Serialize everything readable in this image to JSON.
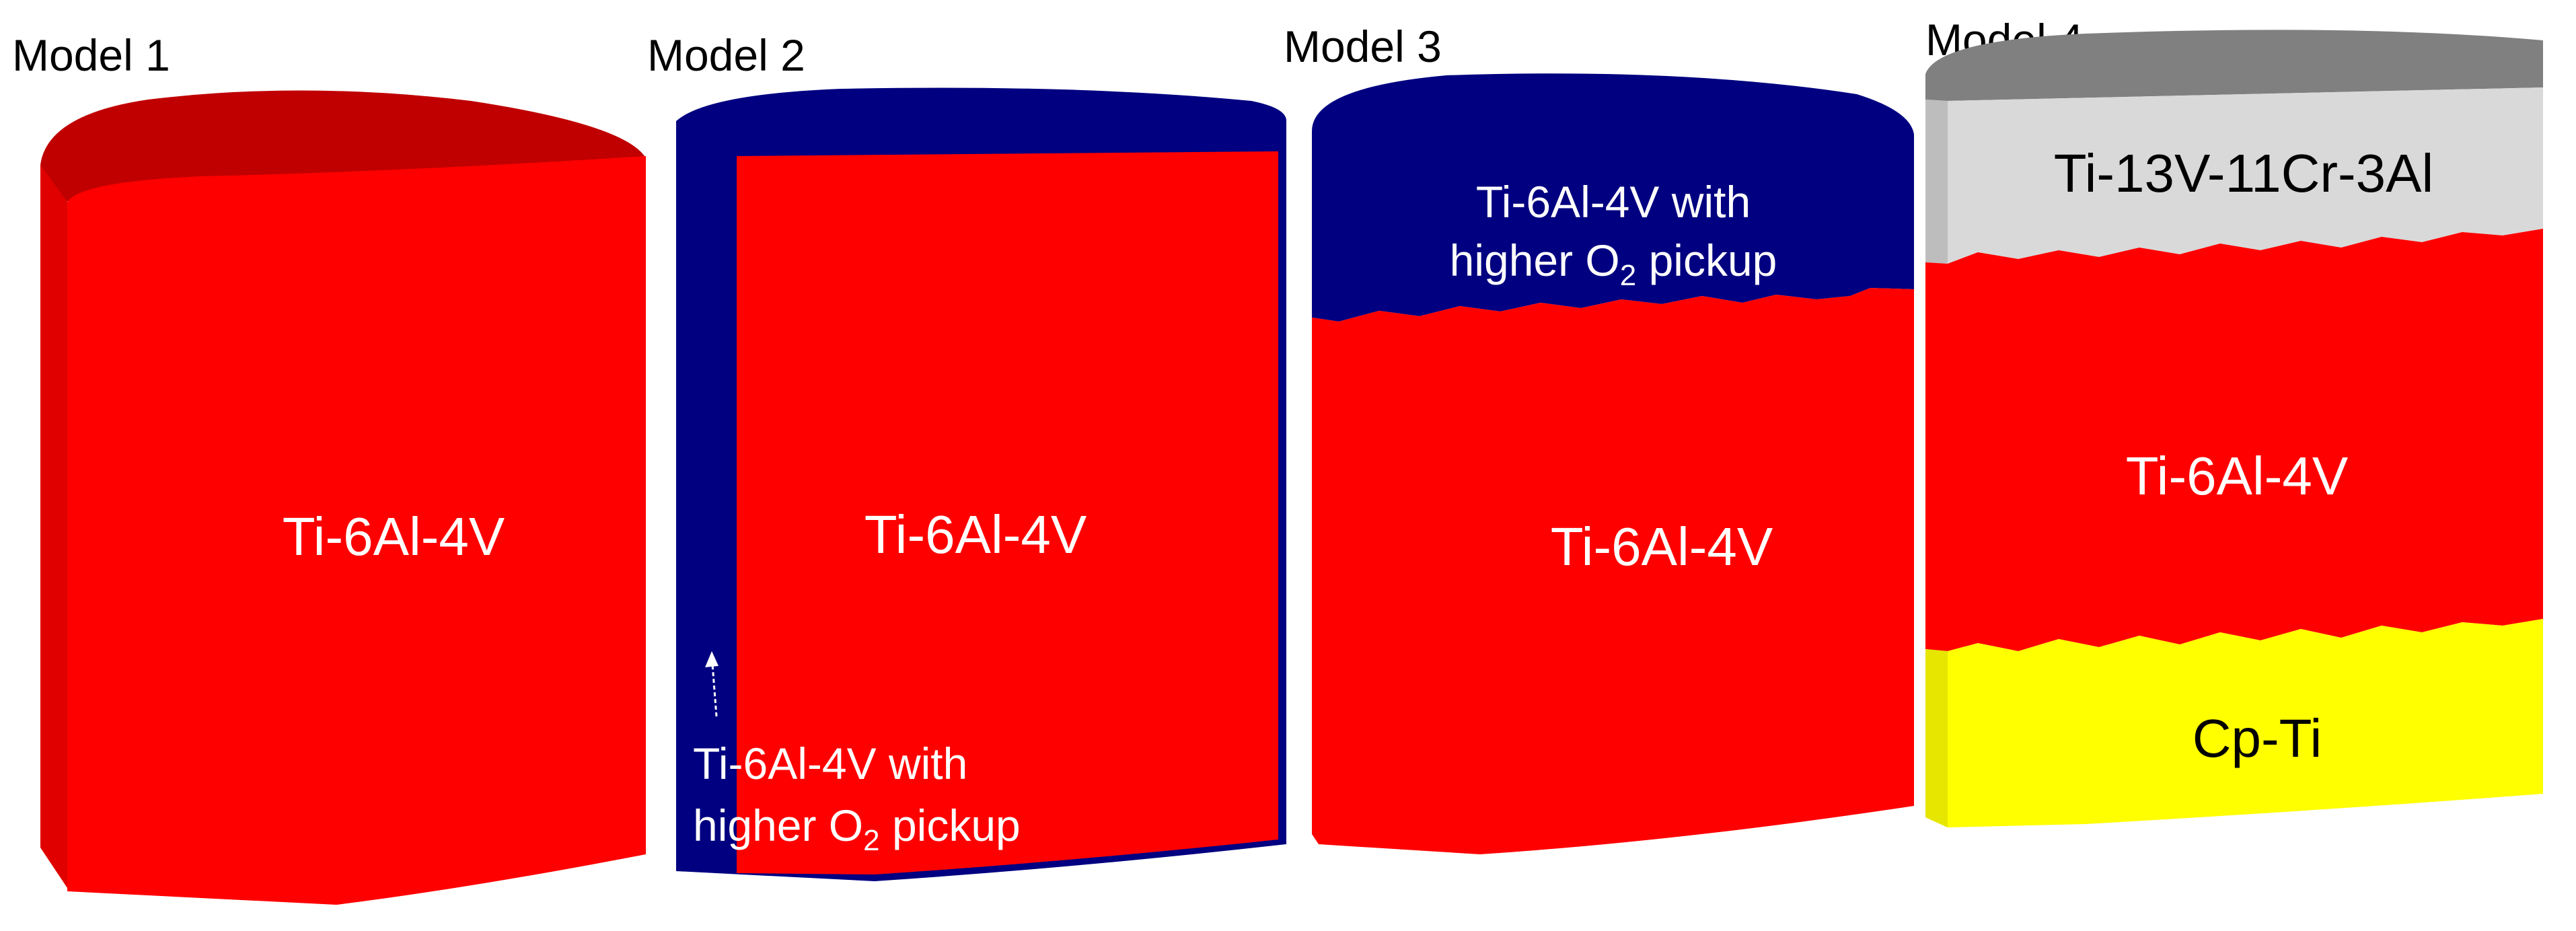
{
  "models": [
    {
      "title": "Model 1",
      "body_label": "Ti-6Al-4V"
    },
    {
      "title": "Model 2",
      "body_label": "Ti-6Al-4V",
      "shell_label_line1": "Ti-6Al-4V with",
      "shell_label_line2_pre": "higher O",
      "shell_label_line2_sub": "2",
      "shell_label_line2_post": " pickup"
    },
    {
      "title": "Model 3",
      "top_label_line1": "Ti-6Al-4V with",
      "top_label_line2_pre": "higher O",
      "top_label_line2_sub": "2",
      "top_label_line2_post": " pickup",
      "body_label": "Ti-6Al-4V"
    },
    {
      "title": "Model 4",
      "top_label": "Ti-13V-11Cr-3Al",
      "mid_label": "Ti-6Al-4V",
      "bottom_label": "Cp-Ti"
    }
  ],
  "colors": {
    "ti64": "#ff0000",
    "ti64_top": "#c00000",
    "ti64_side": "#e00000",
    "oxygen_rich": "#000080",
    "ti13v": "#d9d9d9",
    "ti13v_top": "#808080",
    "cpti": "#ffff00",
    "cpti_side": "#e6e600"
  }
}
